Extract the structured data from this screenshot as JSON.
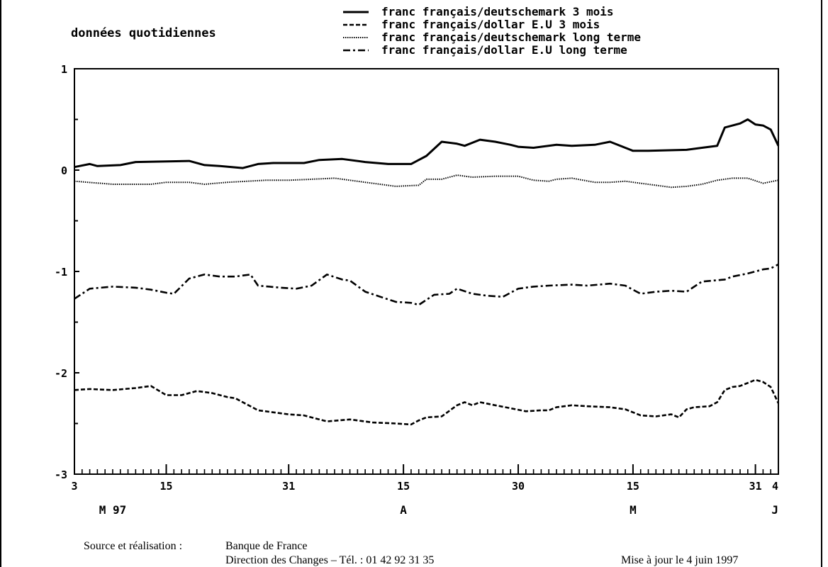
{
  "chart_data": {
    "type": "line",
    "subtitle": "données quotidiennes",
    "ylim": [
      -3,
      1
    ],
    "yticks": [
      {
        "value": 1,
        "label": "1"
      },
      {
        "value": 0,
        "label": "0"
      },
      {
        "value": -1,
        "label": "-1"
      },
      {
        "value": -2,
        "label": "-2"
      },
      {
        "value": -3,
        "label": "-3"
      }
    ],
    "xlim": [
      0,
      92
    ],
    "xticks": [
      {
        "value": 0,
        "label": "3"
      },
      {
        "value": 12,
        "label": "15"
      },
      {
        "value": 28,
        "label": "31"
      },
      {
        "value": 43,
        "label": "15"
      },
      {
        "value": 58,
        "label": "30"
      },
      {
        "value": 73,
        "label": "15"
      },
      {
        "value": 89,
        "label": "31"
      },
      {
        "value": 92,
        "label": "4"
      }
    ],
    "month_labels": [
      {
        "value": 5,
        "label": "M 97"
      },
      {
        "value": 43,
        "label": "A"
      },
      {
        "value": 73,
        "label": "M"
      },
      {
        "value": 92,
        "label": "J"
      }
    ],
    "series": [
      {
        "name": "franc français/deutschemark 3 mois",
        "dash": "solid",
        "x": [
          0,
          2,
          3,
          6,
          8,
          15,
          17,
          19,
          22,
          24,
          26,
          30,
          32,
          35,
          38,
          41,
          44,
          45,
          46,
          48,
          50,
          51,
          53,
          55,
          57,
          58,
          60,
          63,
          65,
          68,
          70,
          72,
          73,
          75,
          80,
          82,
          84,
          85,
          87,
          88,
          89,
          90,
          91,
          92
        ],
        "y": [
          0.03,
          0.06,
          0.04,
          0.05,
          0.08,
          0.09,
          0.05,
          0.04,
          0.02,
          0.06,
          0.07,
          0.07,
          0.1,
          0.11,
          0.08,
          0.06,
          0.06,
          0.1,
          0.14,
          0.28,
          0.26,
          0.24,
          0.3,
          0.28,
          0.25,
          0.23,
          0.22,
          0.25,
          0.24,
          0.25,
          0.28,
          0.22,
          0.19,
          0.19,
          0.2,
          0.22,
          0.24,
          0.42,
          0.46,
          0.5,
          0.45,
          0.44,
          0.4,
          0.24
        ]
      },
      {
        "name": "franc français/dollar E.U 3 mois",
        "dash": "dashed",
        "x": [
          0,
          2,
          5,
          8,
          10,
          12,
          14,
          16,
          18,
          20,
          21,
          24,
          27,
          28,
          30,
          33,
          36,
          39,
          42,
          44,
          45,
          46,
          48,
          50,
          51,
          52,
          53,
          55,
          57,
          59,
          61,
          62,
          63,
          65,
          67,
          70,
          72,
          74,
          76,
          78,
          79,
          80,
          81,
          83,
          84,
          85,
          86,
          87,
          89,
          90,
          91,
          92
        ],
        "y": [
          -2.17,
          -2.16,
          -2.17,
          -2.15,
          -2.13,
          -2.22,
          -2.22,
          -2.18,
          -2.2,
          -2.24,
          -2.25,
          -2.37,
          -2.4,
          -2.41,
          -2.42,
          -2.48,
          -2.46,
          -2.49,
          -2.5,
          -2.51,
          -2.47,
          -2.44,
          -2.43,
          -2.32,
          -2.29,
          -2.32,
          -2.29,
          -2.32,
          -2.35,
          -2.38,
          -2.37,
          -2.37,
          -2.34,
          -2.32,
          -2.33,
          -2.34,
          -2.36,
          -2.42,
          -2.43,
          -2.41,
          -2.44,
          -2.36,
          -2.34,
          -2.33,
          -2.29,
          -2.17,
          -2.14,
          -2.13,
          -2.07,
          -2.09,
          -2.14,
          -2.3
        ]
      },
      {
        "name": "franc français/deutschemark long terme",
        "dash": "dotted",
        "x": [
          0,
          5,
          10,
          12,
          15,
          17,
          20,
          25,
          28,
          31,
          34,
          38,
          42,
          45,
          46,
          48,
          50,
          52,
          55,
          58,
          60,
          62,
          63,
          65,
          68,
          70,
          72,
          74,
          76,
          78,
          80,
          82,
          84,
          86,
          88,
          90,
          92
        ],
        "y": [
          -0.11,
          -0.14,
          -0.14,
          -0.12,
          -0.12,
          -0.14,
          -0.12,
          -0.1,
          -0.1,
          -0.09,
          -0.08,
          -0.12,
          -0.16,
          -0.15,
          -0.09,
          -0.09,
          -0.05,
          -0.07,
          -0.06,
          -0.06,
          -0.1,
          -0.11,
          -0.09,
          -0.08,
          -0.12,
          -0.12,
          -0.11,
          -0.13,
          -0.15,
          -0.17,
          -0.16,
          -0.14,
          -0.1,
          -0.08,
          -0.08,
          -0.13,
          -0.1
        ]
      },
      {
        "name": "franc français/dollar E.U long terme",
        "dash": "dashdot",
        "x": [
          0,
          2,
          5,
          8,
          10,
          12,
          13,
          15,
          17,
          19,
          21,
          23,
          24,
          27,
          29,
          31,
          33,
          35,
          36,
          38,
          40,
          42,
          44,
          45,
          47,
          49,
          50,
          52,
          54,
          56,
          58,
          60,
          62,
          65,
          67,
          70,
          72,
          74,
          76,
          78,
          80,
          82,
          85,
          86,
          88,
          90,
          91,
          92
        ],
        "y": [
          -1.27,
          -1.17,
          -1.15,
          -1.16,
          -1.18,
          -1.21,
          -1.22,
          -1.07,
          -1.03,
          -1.05,
          -1.05,
          -1.03,
          -1.14,
          -1.16,
          -1.17,
          -1.14,
          -1.03,
          -1.08,
          -1.09,
          -1.2,
          -1.25,
          -1.3,
          -1.31,
          -1.33,
          -1.23,
          -1.22,
          -1.17,
          -1.22,
          -1.24,
          -1.25,
          -1.17,
          -1.15,
          -1.14,
          -1.13,
          -1.14,
          -1.12,
          -1.14,
          -1.22,
          -1.2,
          -1.19,
          -1.2,
          -1.1,
          -1.08,
          -1.05,
          -1.02,
          -0.98,
          -0.97,
          -0.93
        ]
      }
    ]
  },
  "footer": {
    "source_label": "Source et réalisation :",
    "source_org": "Banque de France",
    "source_dept": "Direction des Changes – Tél. : 01 42 92 31 35",
    "update": "Mise à jour le 4 juin 1997"
  }
}
